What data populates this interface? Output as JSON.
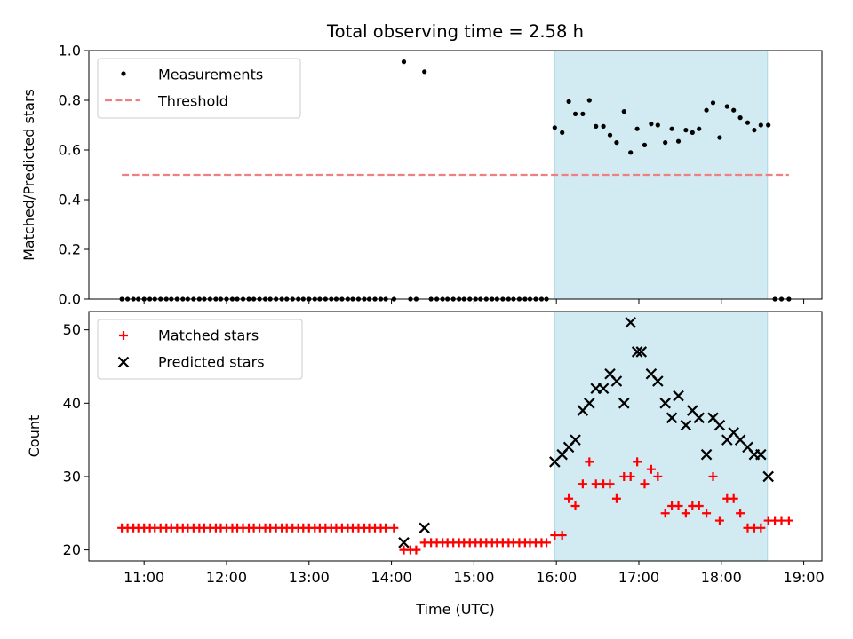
{
  "chart_data": [
    {
      "type": "scatter",
      "title": "Total observing time = 2.58 h",
      "ylabel": "Matched/Predicted stars",
      "xlabel": "",
      "xlim": [
        10.33,
        19.22
      ],
      "ylim": [
        0,
        1.0
      ],
      "yticks": [
        0.0,
        0.2,
        0.4,
        0.6,
        0.8,
        1.0
      ],
      "xticks": [
        "11:00",
        "12:00",
        "13:00",
        "14:00",
        "15:00",
        "16:00",
        "17:00",
        "18:00",
        "19:00"
      ],
      "tick_labels_visible_x": false,
      "shaded_span": [
        15.98,
        18.56
      ],
      "shade_color": "#add8e6",
      "legend_location": "upper-left",
      "series": [
        {
          "name": "Measurements",
          "marker": "dot",
          "color": "#000000",
          "x": [
            10.73,
            10.8,
            10.87,
            10.93,
            11.0,
            11.07,
            11.13,
            11.2,
            11.27,
            11.33,
            11.4,
            11.47,
            11.53,
            11.6,
            11.67,
            11.73,
            11.8,
            11.87,
            11.93,
            12.0,
            12.07,
            12.13,
            12.2,
            12.27,
            12.33,
            12.4,
            12.47,
            12.53,
            12.6,
            12.67,
            12.73,
            12.8,
            12.87,
            12.93,
            13.0,
            13.07,
            13.13,
            13.2,
            13.27,
            13.33,
            13.4,
            13.47,
            13.53,
            13.6,
            13.67,
            13.73,
            13.8,
            13.87,
            13.93,
            14.03,
            14.15,
            14.23,
            14.3,
            14.4,
            14.48,
            14.55,
            14.62,
            14.68,
            14.75,
            14.82,
            14.88,
            14.95,
            15.02,
            15.08,
            15.15,
            15.22,
            15.28,
            15.35,
            15.42,
            15.48,
            15.55,
            15.62,
            15.68,
            15.75,
            15.82,
            15.88,
            15.98,
            16.07,
            16.15,
            16.23,
            16.32,
            16.4,
            16.48,
            16.57,
            16.65,
            16.73,
            16.82,
            16.9,
            16.98,
            17.07,
            17.15,
            17.23,
            17.32,
            17.4,
            17.48,
            17.57,
            17.65,
            17.73,
            17.82,
            17.9,
            17.98,
            18.07,
            18.15,
            18.23,
            18.32,
            18.4,
            18.48,
            18.57,
            18.65,
            18.73,
            18.82
          ],
          "y": [
            0,
            0,
            0,
            0,
            0,
            0,
            0,
            0,
            0,
            0,
            0,
            0,
            0,
            0,
            0,
            0,
            0,
            0,
            0,
            0,
            0,
            0,
            0,
            0,
            0,
            0,
            0,
            0,
            0,
            0,
            0,
            0,
            0,
            0,
            0,
            0,
            0,
            0,
            0,
            0,
            0,
            0,
            0,
            0,
            0,
            0,
            0,
            0,
            0,
            0,
            0.955,
            0,
            0,
            0.915,
            0,
            0,
            0,
            0,
            0,
            0,
            0,
            0,
            0,
            0,
            0,
            0,
            0,
            0,
            0,
            0,
            0,
            0,
            0,
            0,
            0,
            0,
            0.69,
            0.67,
            0.795,
            0.745,
            0.745,
            0.8,
            0.695,
            0.695,
            0.66,
            0.63,
            0.755,
            0.59,
            0.685,
            0.62,
            0.705,
            0.7,
            0.63,
            0.685,
            0.635,
            0.68,
            0.67,
            0.685,
            0.76,
            0.79,
            0.65,
            0.775,
            0.76,
            0.73,
            0.71,
            0.68,
            0.7,
            0.7,
            0,
            0,
            0
          ]
        },
        {
          "name": "Threshold",
          "marker": "dashed-line",
          "color": "#f08080",
          "x": [
            10.73,
            18.82
          ],
          "y": [
            0.5,
            0.5
          ]
        }
      ]
    },
    {
      "type": "scatter",
      "title": "",
      "ylabel": "Count",
      "xlabel": "Time (UTC)",
      "xlim": [
        10.33,
        19.22
      ],
      "ylim": [
        18.5,
        52.5
      ],
      "yticks": [
        20,
        30,
        40,
        50
      ],
      "xticks": [
        "11:00",
        "12:00",
        "13:00",
        "14:00",
        "15:00",
        "16:00",
        "17:00",
        "18:00",
        "19:00"
      ],
      "shaded_span": [
        15.98,
        18.56
      ],
      "shade_color": "#add8e6",
      "legend_location": "upper-left",
      "series": [
        {
          "name": "Matched stars",
          "marker": "plus",
          "color": "#ff0000",
          "x": [
            10.73,
            10.8,
            10.87,
            10.93,
            11.0,
            11.07,
            11.13,
            11.2,
            11.27,
            11.33,
            11.4,
            11.47,
            11.53,
            11.6,
            11.67,
            11.73,
            11.8,
            11.87,
            11.93,
            12.0,
            12.07,
            12.13,
            12.2,
            12.27,
            12.33,
            12.4,
            12.47,
            12.53,
            12.6,
            12.67,
            12.73,
            12.8,
            12.87,
            12.93,
            13.0,
            13.07,
            13.13,
            13.2,
            13.27,
            13.33,
            13.4,
            13.47,
            13.53,
            13.6,
            13.67,
            13.73,
            13.8,
            13.87,
            13.93,
            14.03,
            14.15,
            14.23,
            14.3,
            14.4,
            14.48,
            14.55,
            14.62,
            14.68,
            14.75,
            14.82,
            14.88,
            14.95,
            15.02,
            15.08,
            15.15,
            15.22,
            15.28,
            15.35,
            15.42,
            15.48,
            15.55,
            15.62,
            15.68,
            15.75,
            15.82,
            15.88,
            15.98,
            16.07,
            16.15,
            16.23,
            16.32,
            16.4,
            16.48,
            16.57,
            16.65,
            16.73,
            16.82,
            16.9,
            16.98,
            17.07,
            17.15,
            17.23,
            17.32,
            17.4,
            17.48,
            17.57,
            17.65,
            17.73,
            17.82,
            17.9,
            17.98,
            18.07,
            18.15,
            18.23,
            18.32,
            18.4,
            18.48,
            18.57,
            18.65,
            18.73,
            18.82
          ],
          "y": [
            23,
            23,
            23,
            23,
            23,
            23,
            23,
            23,
            23,
            23,
            23,
            23,
            23,
            23,
            23,
            23,
            23,
            23,
            23,
            23,
            23,
            23,
            23,
            23,
            23,
            23,
            23,
            23,
            23,
            23,
            23,
            23,
            23,
            23,
            23,
            23,
            23,
            23,
            23,
            23,
            23,
            23,
            23,
            23,
            23,
            23,
            23,
            23,
            23,
            23,
            20,
            20,
            20,
            21,
            21,
            21,
            21,
            21,
            21,
            21,
            21,
            21,
            21,
            21,
            21,
            21,
            21,
            21,
            21,
            21,
            21,
            21,
            21,
            21,
            21,
            21,
            22,
            22,
            27,
            26,
            29,
            32,
            29,
            29,
            29,
            27,
            30,
            30,
            32,
            29,
            31,
            30,
            25,
            26,
            26,
            25,
            26,
            26,
            25,
            30,
            24,
            27,
            27,
            25,
            23,
            23,
            23,
            24,
            24,
            24,
            24
          ]
        },
        {
          "name": "Predicted stars",
          "marker": "x",
          "color": "#000000",
          "x": [
            14.15,
            14.4,
            15.98,
            16.07,
            16.15,
            16.23,
            16.32,
            16.4,
            16.48,
            16.57,
            16.65,
            16.73,
            16.82,
            16.9,
            16.98,
            17.03,
            17.15,
            17.23,
            17.32,
            17.4,
            17.48,
            17.57,
            17.65,
            17.73,
            17.82,
            17.9,
            17.98,
            18.07,
            18.15,
            18.23,
            18.32,
            18.4,
            18.48,
            18.57
          ],
          "y": [
            21,
            23,
            32,
            33,
            34,
            35,
            39,
            40,
            42,
            42,
            44,
            43,
            40,
            51,
            47,
            47,
            44,
            43,
            40,
            38,
            41,
            37,
            39,
            38,
            33,
            38,
            37,
            35,
            36,
            35,
            34,
            33,
            33,
            30
          ]
        }
      ]
    }
  ]
}
